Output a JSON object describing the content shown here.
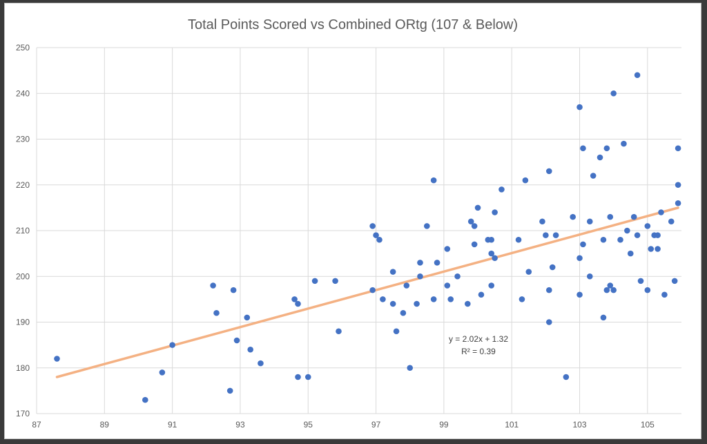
{
  "chart_data": {
    "type": "scatter",
    "title": "Total Points Scored vs Combined ORtg (107 & Below)",
    "xlabel": "",
    "ylabel": "",
    "xlim": [
      87,
      106
    ],
    "ylim": [
      170,
      250
    ],
    "x_ticks": [
      87,
      89,
      91,
      93,
      95,
      97,
      99,
      101,
      103,
      105
    ],
    "y_ticks": [
      170,
      180,
      190,
      200,
      210,
      220,
      230,
      240,
      250
    ],
    "grid": true,
    "point_color": "#4472c4",
    "trendline": {
      "color": "#f4b183",
      "x_range": [
        87.6,
        105.9
      ],
      "y_range": [
        178,
        215
      ],
      "equation": "y = 2.02x + 1.32",
      "r_squared": "R² = 0.39"
    },
    "points": [
      [
        87.6,
        182
      ],
      [
        90.2,
        173
      ],
      [
        90.7,
        179
      ],
      [
        91.0,
        185
      ],
      [
        92.2,
        198
      ],
      [
        92.3,
        192
      ],
      [
        92.7,
        175
      ],
      [
        92.8,
        197
      ],
      [
        92.9,
        186
      ],
      [
        93.2,
        191
      ],
      [
        93.3,
        184
      ],
      [
        93.6,
        181
      ],
      [
        94.6,
        195
      ],
      [
        94.7,
        194
      ],
      [
        94.7,
        178
      ],
      [
        95.0,
        178
      ],
      [
        95.2,
        199
      ],
      [
        95.8,
        199
      ],
      [
        95.9,
        188
      ],
      [
        96.9,
        211
      ],
      [
        96.9,
        197
      ],
      [
        97.0,
        209
      ],
      [
        97.1,
        208
      ],
      [
        97.2,
        195
      ],
      [
        97.5,
        201
      ],
      [
        97.5,
        194
      ],
      [
        97.6,
        188
      ],
      [
        97.8,
        192
      ],
      [
        97.9,
        198
      ],
      [
        98.0,
        180
      ],
      [
        98.2,
        194
      ],
      [
        98.3,
        200
      ],
      [
        98.3,
        203
      ],
      [
        98.5,
        211
      ],
      [
        98.7,
        221
      ],
      [
        98.7,
        195
      ],
      [
        98.8,
        203
      ],
      [
        99.1,
        198
      ],
      [
        99.1,
        206
      ],
      [
        99.2,
        195
      ],
      [
        99.4,
        200
      ],
      [
        99.7,
        194
      ],
      [
        99.8,
        212
      ],
      [
        99.9,
        211
      ],
      [
        99.9,
        207
      ],
      [
        100.0,
        215
      ],
      [
        100.1,
        196
      ],
      [
        100.3,
        208
      ],
      [
        100.4,
        208
      ],
      [
        100.4,
        205
      ],
      [
        100.4,
        198
      ],
      [
        100.5,
        214
      ],
      [
        100.5,
        204
      ],
      [
        100.7,
        219
      ],
      [
        101.2,
        208
      ],
      [
        101.3,
        195
      ],
      [
        101.4,
        221
      ],
      [
        101.5,
        201
      ],
      [
        101.9,
        212
      ],
      [
        102.0,
        209
      ],
      [
        102.1,
        197
      ],
      [
        102.1,
        190
      ],
      [
        102.1,
        223
      ],
      [
        102.2,
        202
      ],
      [
        102.3,
        209
      ],
      [
        102.6,
        178
      ],
      [
        102.8,
        213
      ],
      [
        103.0,
        237
      ],
      [
        103.0,
        196
      ],
      [
        103.0,
        204
      ],
      [
        103.1,
        228
      ],
      [
        103.1,
        207
      ],
      [
        103.3,
        212
      ],
      [
        103.3,
        200
      ],
      [
        103.4,
        222
      ],
      [
        103.6,
        226
      ],
      [
        103.7,
        208
      ],
      [
        103.7,
        191
      ],
      [
        103.8,
        197
      ],
      [
        103.8,
        228
      ],
      [
        103.9,
        213
      ],
      [
        103.9,
        198
      ],
      [
        104.0,
        197
      ],
      [
        104.0,
        240
      ],
      [
        104.2,
        208
      ],
      [
        104.3,
        229
      ],
      [
        104.4,
        210
      ],
      [
        104.5,
        205
      ],
      [
        104.6,
        213
      ],
      [
        104.7,
        209
      ],
      [
        104.7,
        244
      ],
      [
        104.8,
        199
      ],
      [
        105.0,
        211
      ],
      [
        105.0,
        197
      ],
      [
        105.1,
        206
      ],
      [
        105.2,
        209
      ],
      [
        105.3,
        209
      ],
      [
        105.3,
        206
      ],
      [
        105.4,
        214
      ],
      [
        105.5,
        196
      ],
      [
        105.7,
        212
      ],
      [
        105.8,
        199
      ],
      [
        105.9,
        220
      ],
      [
        105.9,
        216
      ],
      [
        105.9,
        228
      ]
    ]
  }
}
